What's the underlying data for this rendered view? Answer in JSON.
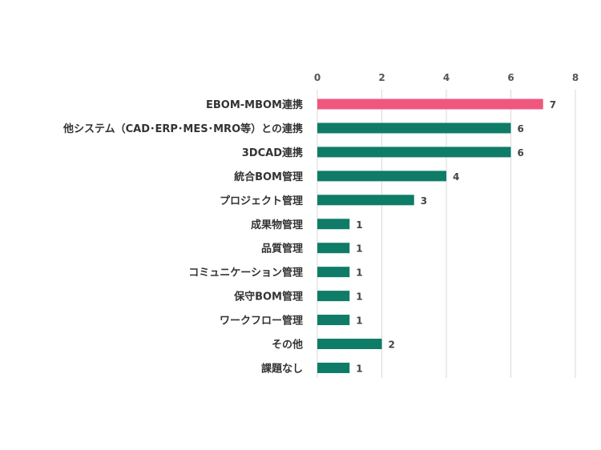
{
  "chart_data": {
    "type": "bar",
    "orientation": "horizontal",
    "axis_position": "top",
    "xlim": [
      0,
      8
    ],
    "ticks": [
      0,
      2,
      4,
      6,
      8
    ],
    "tick_labels": [
      "0",
      "2",
      "4",
      "6",
      "8"
    ],
    "grid": true,
    "colors": {
      "highlight": "#f0577f",
      "default": "#0e7c66",
      "grid": "#d9d9d9",
      "text": "#333333"
    },
    "categories": [
      "EBOM-MBOM連携",
      "他システム（CAD･ERP･MES･MRO等）との連携",
      "3DCAD連携",
      "統合BOM管理",
      "プロジェクト管理",
      "成果物管理",
      "品質管理",
      "コミュニケーション管理",
      "保守BOM管理",
      "ワークフロー管理",
      "その他",
      "課題なし"
    ],
    "values": [
      7,
      6,
      6,
      4,
      3,
      1,
      1,
      1,
      1,
      1,
      2,
      1
    ],
    "value_labels": [
      "7",
      "6",
      "6",
      "4",
      "3",
      "1",
      "1",
      "1",
      "1",
      "1",
      "2",
      "1"
    ],
    "highlight_index": 0
  }
}
